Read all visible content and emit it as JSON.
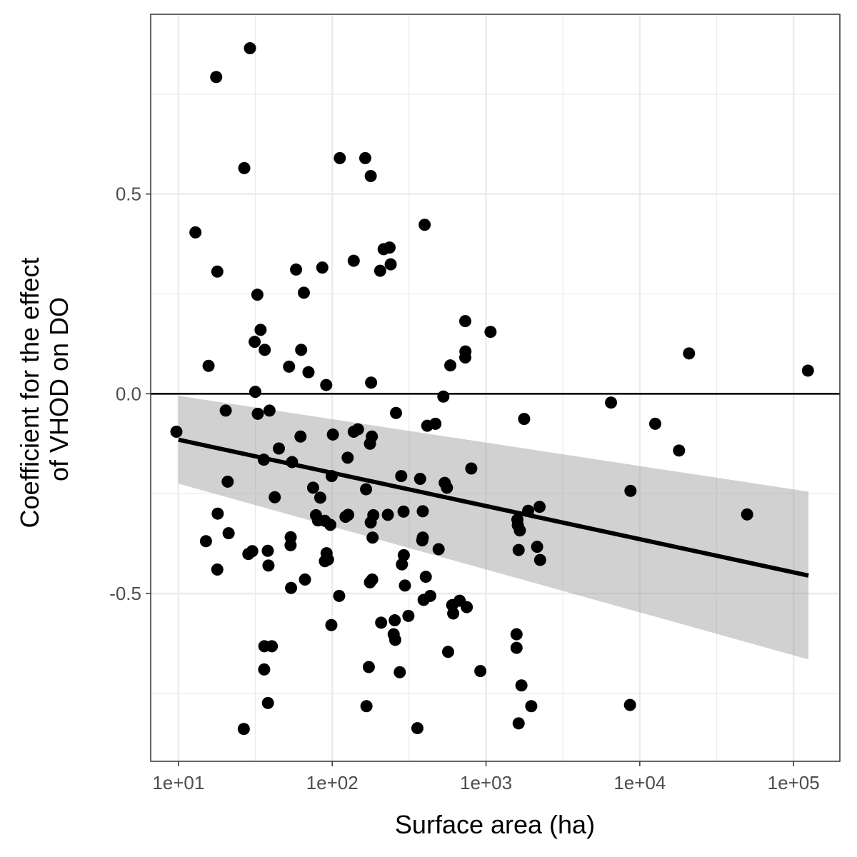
{
  "chart_data": {
    "type": "scatter",
    "title": "",
    "xlabel": "Surface area (ha)",
    "ylabel": [
      "Coefficient for the effect",
      "of VHOD on DO"
    ],
    "x_scale": "log10",
    "xlim": [
      6.6,
      200000
    ],
    "ylim": [
      -0.92,
      0.95
    ],
    "x_ticks": [
      10,
      100,
      1000,
      10000,
      100000
    ],
    "x_tick_labels": [
      "1e+01",
      "1e+02",
      "1e+03",
      "1e+04",
      "1e+05"
    ],
    "y_ticks": [
      -0.5,
      0.0,
      0.5
    ],
    "y_tick_labels": [
      "-0.5",
      "0.0",
      "0.5"
    ],
    "x_minor_gridlines": [
      31.6,
      316,
      3160,
      31600
    ],
    "y_minor_gridlines": [
      -0.75,
      -0.25,
      0.25,
      0.75
    ],
    "grid": true,
    "reference_line_y": 0,
    "colors": {
      "points": "#000000",
      "trend_line": "#000000",
      "confidence_band": "#999999",
      "grid": "#ebebeb",
      "border": "#333333"
    },
    "trend_line": {
      "method": "linear regression (log x)",
      "points": [
        [
          10,
          -0.115
        ],
        [
          125000,
          -0.455
        ]
      ]
    },
    "confidence_band": {
      "x": [
        10,
        125000
      ],
      "lower": [
        -0.225,
        -0.665
      ],
      "upper": [
        -0.005,
        -0.245
      ]
    },
    "points": [
      [
        29.2,
        0.865
      ],
      [
        17.6,
        0.793
      ],
      [
        26.8,
        0.565
      ],
      [
        112,
        0.59
      ],
      [
        164,
        0.59
      ],
      [
        178,
        0.545
      ],
      [
        12.9,
        0.404
      ],
      [
        17.9,
        0.306
      ],
      [
        399,
        0.423
      ],
      [
        138,
        0.333
      ],
      [
        58.2,
        0.311
      ],
      [
        86.2,
        0.316
      ],
      [
        205,
        0.308
      ],
      [
        216,
        0.362
      ],
      [
        236,
        0.366
      ],
      [
        240,
        0.324
      ],
      [
        32.6,
        0.248
      ],
      [
        65.4,
        0.253
      ],
      [
        34.2,
        0.16
      ],
      [
        31.3,
        0.13
      ],
      [
        36.4,
        0.11
      ],
      [
        62.8,
        0.11
      ],
      [
        733,
        0.182
      ],
      [
        1070,
        0.155
      ],
      [
        735,
        0.106
      ],
      [
        733,
        0.091
      ],
      [
        15.7,
        0.07
      ],
      [
        52.4,
        0.068
      ],
      [
        70.1,
        0.054
      ],
      [
        586,
        0.071
      ],
      [
        20900,
        0.101
      ],
      [
        124000,
        0.058
      ],
      [
        91.4,
        0.022
      ],
      [
        31.6,
        0.005
      ],
      [
        179,
        0.028
      ],
      [
        528,
        -0.007
      ],
      [
        6500,
        -0.022
      ],
      [
        20.3,
        -0.042
      ],
      [
        32.8,
        -0.05
      ],
      [
        39.1,
        -0.042
      ],
      [
        260,
        -0.048
      ],
      [
        1770,
        -0.063
      ],
      [
        415,
        -0.08
      ],
      [
        469,
        -0.075
      ],
      [
        9.7,
        -0.095
      ],
      [
        62.2,
        -0.107
      ],
      [
        101,
        -0.102
      ],
      [
        138,
        -0.095
      ],
      [
        147,
        -0.089
      ],
      [
        181,
        -0.107
      ],
      [
        176,
        -0.125
      ],
      [
        12600,
        -0.075
      ],
      [
        18000,
        -0.142
      ],
      [
        45,
        -0.137
      ],
      [
        35.9,
        -0.165
      ],
      [
        54.8,
        -0.171
      ],
      [
        126,
        -0.16
      ],
      [
        802,
        -0.187
      ],
      [
        99.2,
        -0.206
      ],
      [
        20.9,
        -0.22
      ],
      [
        281,
        -0.206
      ],
      [
        373,
        -0.213
      ],
      [
        539,
        -0.223
      ],
      [
        557,
        -0.235
      ],
      [
        75.1,
        -0.235
      ],
      [
        83.6,
        -0.26
      ],
      [
        166,
        -0.239
      ],
      [
        42.3,
        -0.259
      ],
      [
        8700,
        -0.243
      ],
      [
        18,
        -0.3
      ],
      [
        78.4,
        -0.304
      ],
      [
        80.8,
        -0.317
      ],
      [
        89.5,
        -0.318
      ],
      [
        97.2,
        -0.328
      ],
      [
        122,
        -0.308
      ],
      [
        127,
        -0.303
      ],
      [
        185,
        -0.304
      ],
      [
        178,
        -0.322
      ],
      [
        230,
        -0.303
      ],
      [
        291,
        -0.295
      ],
      [
        388,
        -0.294
      ],
      [
        1600,
        -0.315
      ],
      [
        1610,
        -0.329
      ],
      [
        1660,
        -0.342
      ],
      [
        1880,
        -0.293
      ],
      [
        2230,
        -0.283
      ],
      [
        2150,
        -0.383
      ],
      [
        2250,
        -0.416
      ],
      [
        1630,
        -0.391
      ],
      [
        49900,
        -0.302
      ],
      [
        15.1,
        -0.369
      ],
      [
        21.2,
        -0.349
      ],
      [
        53.7,
        -0.359
      ],
      [
        53.6,
        -0.379
      ],
      [
        38.1,
        -0.393
      ],
      [
        30.2,
        -0.394
      ],
      [
        28.5,
        -0.401
      ],
      [
        91.9,
        -0.399
      ],
      [
        93.9,
        -0.415
      ],
      [
        89.6,
        -0.419
      ],
      [
        183,
        -0.36
      ],
      [
        388,
        -0.36
      ],
      [
        385,
        -0.367
      ],
      [
        492,
        -0.389
      ],
      [
        292,
        -0.404
      ],
      [
        284,
        -0.427
      ],
      [
        17.9,
        -0.44
      ],
      [
        38.5,
        -0.43
      ],
      [
        66.5,
        -0.465
      ],
      [
        54,
        -0.486
      ],
      [
        182,
        -0.465
      ],
      [
        176,
        -0.472
      ],
      [
        406,
        -0.458
      ],
      [
        297,
        -0.48
      ],
      [
        111,
        -0.506
      ],
      [
        434,
        -0.506
      ],
      [
        393,
        -0.516
      ],
      [
        674,
        -0.518
      ],
      [
        603,
        -0.529
      ],
      [
        750,
        -0.534
      ],
      [
        612,
        -0.55
      ],
      [
        208,
        -0.573
      ],
      [
        255,
        -0.567
      ],
      [
        313,
        -0.556
      ],
      [
        98.7,
        -0.579
      ],
      [
        251,
        -0.602
      ],
      [
        257,
        -0.616
      ],
      [
        1580,
        -0.602
      ],
      [
        1580,
        -0.636
      ],
      [
        36.2,
        -0.632
      ],
      [
        40.5,
        -0.632
      ],
      [
        36.1,
        -0.69
      ],
      [
        567,
        -0.646
      ],
      [
        173,
        -0.684
      ],
      [
        275,
        -0.697
      ],
      [
        919,
        -0.694
      ],
      [
        1700,
        -0.73
      ],
      [
        38.2,
        -0.774
      ],
      [
        167,
        -0.782
      ],
      [
        1970,
        -0.782
      ],
      [
        8640,
        -0.779
      ],
      [
        26.6,
        -0.839
      ],
      [
        358,
        -0.837
      ],
      [
        1630,
        -0.825
      ]
    ]
  }
}
